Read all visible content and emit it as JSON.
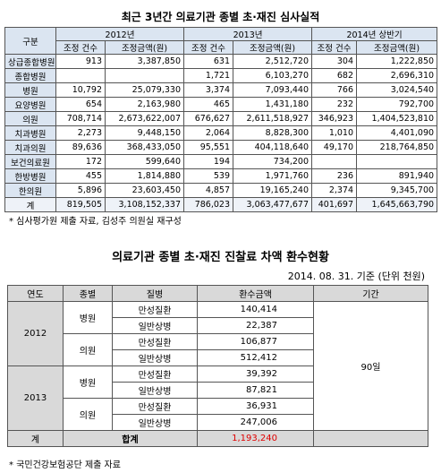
{
  "table1": {
    "title": "최근 3년간 의료기관 종별 초·재진 심사실적",
    "header": {
      "label": "구분",
      "periods": [
        "2012년",
        "2013년",
        "2014년 상반기"
      ],
      "sub": [
        "조정 건수",
        "조정금액(원)"
      ]
    },
    "rows": [
      [
        "상급종합병원",
        "913",
        "3,387,850",
        "631",
        "2,512,720",
        "304",
        "1,222,850"
      ],
      [
        "종합병원",
        null,
        null,
        "1,721",
        "6,103,270",
        "682",
        "2,696,310"
      ],
      [
        "병원",
        "10,792",
        "25,079,330",
        "3,374",
        "7,093,440",
        "766",
        "3,024,540"
      ],
      [
        "요양병원",
        "654",
        "2,163,980",
        "465",
        "1,431,180",
        "232",
        "792,700"
      ],
      [
        "의원",
        "708,714",
        "2,673,622,007",
        "676,627",
        "2,611,518,927",
        "346,923",
        "1,404,523,810"
      ],
      [
        "치과병원",
        "2,273",
        "9,448,150",
        "2,064",
        "8,828,300",
        "1,010",
        "4,401,090"
      ],
      [
        "치과의원",
        "89,636",
        "368,433,050",
        "95,551",
        "404,118,640",
        "49,170",
        "218,764,850"
      ],
      [
        "보건의료원",
        "172",
        "599,640",
        "194",
        "734,200",
        null,
        null
      ],
      [
        "한방병원",
        "455",
        "1,814,880",
        "539",
        "1,971,760",
        "236",
        "891,940"
      ],
      [
        "한의원",
        "5,896",
        "23,603,450",
        "4,857",
        "19,165,240",
        "2,374",
        "9,345,700"
      ]
    ],
    "total": [
      "계",
      "819,505",
      "3,108,152,337",
      "786,023",
      "3,063,477,677",
      "401,697",
      "1,645,663,790"
    ],
    "note": "* 심사평가원 제출 자료, 김성주 의원실 재구성"
  },
  "table2": {
    "title": "의료기관 종별 초·재진 진찰료 차액 환수현황",
    "subtitle": "2014. 08. 31. 기준 (단위 천원)",
    "header": [
      "연도",
      "종별",
      "질병",
      "환수금액",
      "기간"
    ],
    "years": [
      {
        "year": "2012",
        "types": [
          {
            "type": "병원",
            "items": [
              {
                "disease": "만성질환",
                "amount": "140,414"
              },
              {
                "disease": "일반상병",
                "amount": "22,387"
              }
            ]
          },
          {
            "type": "의원",
            "items": [
              {
                "disease": "만성질환",
                "amount": "106,877"
              },
              {
                "disease": "일반상병",
                "amount": "512,412"
              }
            ]
          }
        ]
      },
      {
        "year": "2013",
        "types": [
          {
            "type": "병원",
            "items": [
              {
                "disease": "만성질환",
                "amount": "39,392"
              },
              {
                "disease": "일반상병",
                "amount": "87,821"
              }
            ]
          },
          {
            "type": "의원",
            "items": [
              {
                "disease": "만성질환",
                "amount": "36,931"
              },
              {
                "disease": "일반상병",
                "amount": "247,006"
              }
            ]
          }
        ]
      }
    ],
    "period": "90일",
    "total": {
      "year": "계",
      "label": "합계",
      "amount": "1,193,240"
    },
    "note": "* 국민건강보험공단 제출 자료"
  }
}
